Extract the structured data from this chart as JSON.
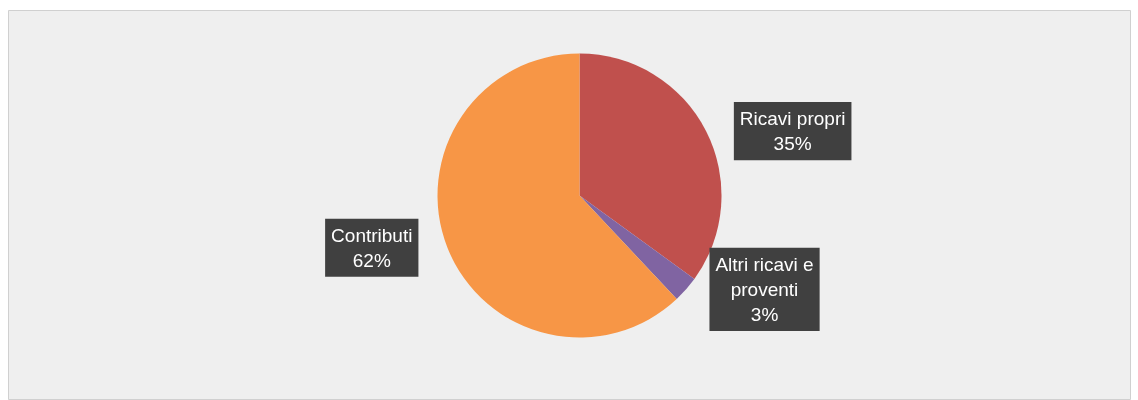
{
  "chart_data": {
    "type": "pie",
    "categories": [
      "Ricavi propri",
      "Altri ricavi e proventi",
      "Contributi"
    ],
    "values": [
      35,
      3,
      62
    ],
    "colors": [
      "#c0504d",
      "#8064a2",
      "#f79646"
    ],
    "value_labels": [
      "35%",
      "3%",
      "62%"
    ]
  }
}
